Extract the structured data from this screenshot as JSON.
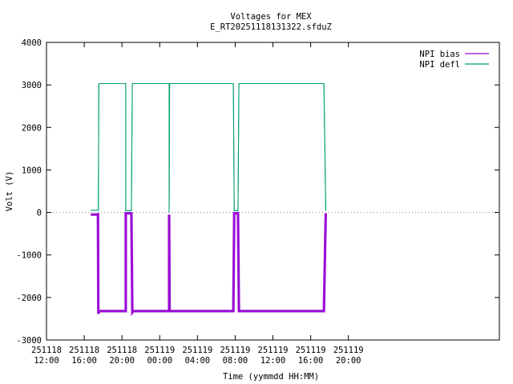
{
  "chart_data": {
    "type": "line",
    "title": "Voltages for MEX",
    "subtitle": "E_RT20251118131322.sfduZ",
    "xlabel": "Time (yymmdd HH:MM)",
    "ylabel": "Volt (V)",
    "xlim_hours": [
      12,
      60
    ],
    "ylim": [
      -3000,
      4000
    ],
    "yticks": [
      -3000,
      -2000,
      -1000,
      0,
      1000,
      2000,
      3000,
      4000
    ],
    "xticks": [
      {
        "hour": 12,
        "date": "251118",
        "time": "12:00"
      },
      {
        "hour": 16,
        "date": "251118",
        "time": "16:00"
      },
      {
        "hour": 20,
        "date": "251118",
        "time": "20:00"
      },
      {
        "hour": 24,
        "date": "251119",
        "time": "00:00"
      },
      {
        "hour": 28,
        "date": "251119",
        "time": "04:00"
      },
      {
        "hour": 32,
        "date": "251119",
        "time": "08:00"
      },
      {
        "hour": 36,
        "date": "251119",
        "time": "12:00"
      },
      {
        "hour": 40,
        "date": "251119",
        "time": "16:00"
      },
      {
        "hour": 44,
        "date": "251119",
        "time": "20:00"
      }
    ],
    "legend_position": "top-right",
    "series": [
      {
        "name": "NPI bias",
        "color": "#9400d3",
        "band": 60,
        "points": [
          [
            16.7,
            -50
          ],
          [
            17.3,
            -50
          ],
          [
            17.45,
            -40
          ],
          [
            17.5,
            -2380
          ],
          [
            17.6,
            -2320
          ],
          [
            20.4,
            -2320
          ],
          [
            20.4,
            -20
          ],
          [
            21.0,
            -20
          ],
          [
            21.1,
            -2350
          ],
          [
            21.2,
            -2320
          ],
          [
            25.0,
            -2320
          ],
          [
            25.0,
            -50
          ],
          [
            25.05,
            -2320
          ],
          [
            31.8,
            -2320
          ],
          [
            31.9,
            -20
          ],
          [
            32.3,
            -20
          ],
          [
            32.4,
            -2320
          ],
          [
            41.4,
            -2320
          ],
          [
            41.6,
            -20
          ]
        ]
      },
      {
        "name": "NPI defl",
        "color": "#009e73",
        "band": 20,
        "points": [
          [
            16.7,
            50
          ],
          [
            17.3,
            50
          ],
          [
            17.5,
            50
          ],
          [
            17.55,
            3030
          ],
          [
            17.6,
            3030
          ],
          [
            20.4,
            3030
          ],
          [
            20.4,
            40
          ],
          [
            21.0,
            40
          ],
          [
            21.1,
            3030
          ],
          [
            25.0,
            3030
          ],
          [
            25.0,
            0
          ],
          [
            25.05,
            3030
          ],
          [
            31.8,
            3030
          ],
          [
            31.9,
            40
          ],
          [
            32.3,
            40
          ],
          [
            32.4,
            3030
          ],
          [
            41.4,
            3030
          ],
          [
            41.6,
            40
          ]
        ]
      }
    ]
  }
}
